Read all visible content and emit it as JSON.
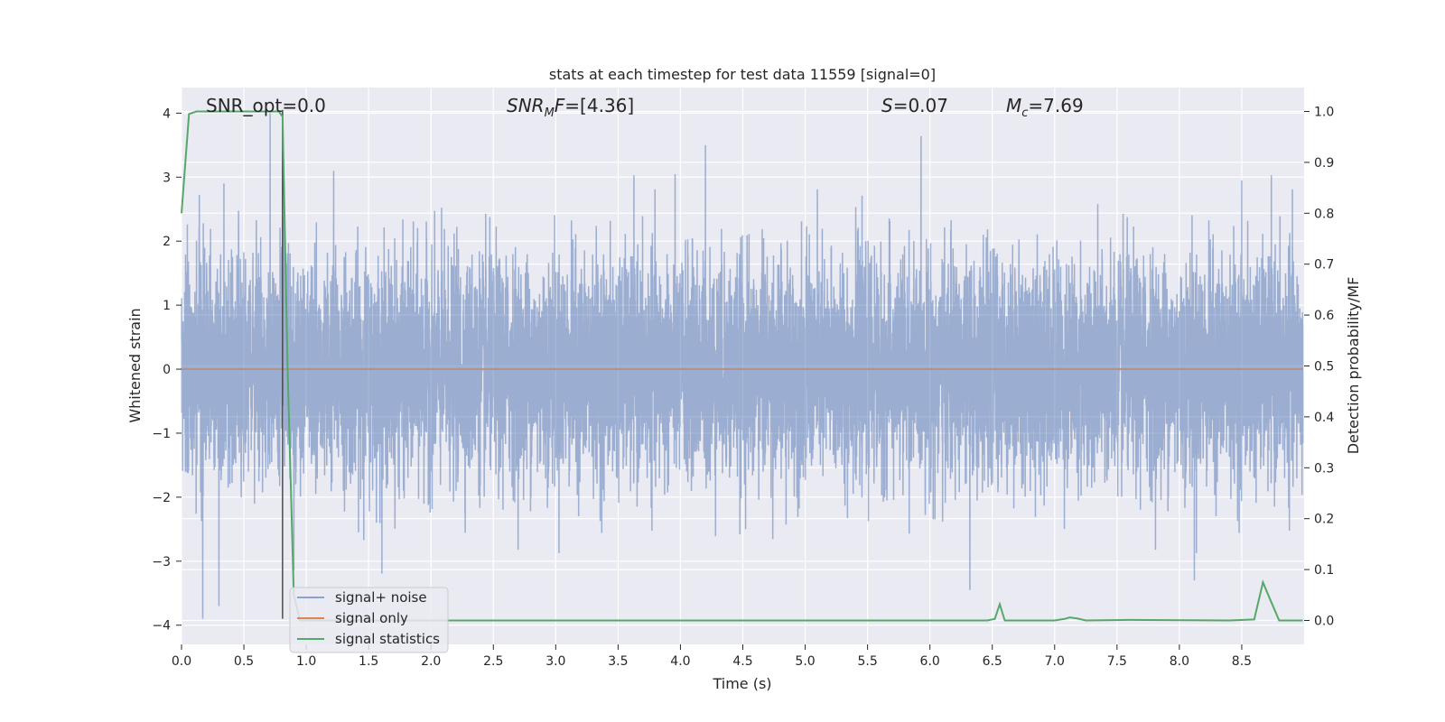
{
  "chart_data": {
    "type": "line",
    "title": "stats at each timestep for test data 11559 [signal=0]",
    "xlabel": "Time (s)",
    "ylabel_left": "Whitened strain",
    "ylabel_right": "Detection probability/MF",
    "xlim": [
      0.0,
      9.0
    ],
    "ylim_left": [
      -4.3,
      4.4
    ],
    "ylim_right": [
      -0.047,
      1.047
    ],
    "x_ticks": [
      0.0,
      0.5,
      1.0,
      1.5,
      2.0,
      2.5,
      3.0,
      3.5,
      4.0,
      4.5,
      5.0,
      5.5,
      6.0,
      6.5,
      7.0,
      7.5,
      8.0,
      8.5
    ],
    "x_tick_labels": [
      "0.0",
      "0.5",
      "1.0",
      "1.5",
      "2.0",
      "2.5",
      "3.0",
      "3.5",
      "4.0",
      "4.5",
      "5.0",
      "5.5",
      "6.0",
      "6.5",
      "7.0",
      "7.5",
      "8.0",
      "8.5"
    ],
    "y_left_ticks": [
      4,
      3,
      2,
      1,
      0,
      -1,
      -2,
      -3,
      -4
    ],
    "y_left_tick_labels": [
      "4",
      "3",
      "2",
      "1",
      "0",
      "−1",
      "−2",
      "−3",
      "−4"
    ],
    "y_right_ticks": [
      1.0,
      0.9,
      0.8,
      0.7,
      0.6,
      0.5,
      0.4,
      0.3,
      0.2,
      0.1,
      0.0
    ],
    "y_right_tick_labels": [
      "1.0",
      "0.9",
      "0.8",
      "0.7",
      "0.6",
      "0.5",
      "0.4",
      "0.3",
      "0.2",
      "0.1",
      "0.0"
    ],
    "grid": true,
    "annotations": [
      {
        "key": "snr_opt",
        "text": "SNR_opt=0.0",
        "x": 0.2
      },
      {
        "key": "snr_mf",
        "text": "SNR_MF=[4.36]",
        "x": 2.6
      },
      {
        "key": "s_value",
        "text": "S=0.07",
        "x": 5.6
      },
      {
        "key": "mc_value",
        "text": "M_c=7.69",
        "x": 6.6
      }
    ],
    "marker_line": {
      "x": 0.81,
      "y_from": -3.9,
      "y_to": 4.05
    },
    "series": [
      {
        "name": "signal+ noise",
        "axis": "left",
        "color": "#4c72b0",
        "opacity": 0.5,
        "kind": "noise",
        "sample_rate": 1024,
        "std": 0.85,
        "notable_peaks": [
          [
            0.17,
            -3.9
          ],
          [
            0.3,
            -3.7
          ],
          [
            0.34,
            2.9
          ],
          [
            0.71,
            4.0
          ],
          [
            0.81,
            4.05
          ],
          [
            0.9,
            -3.15
          ],
          [
            1.22,
            3.1
          ],
          [
            4.2,
            3.5
          ],
          [
            6.32,
            -3.45
          ],
          [
            8.12,
            -3.3
          ],
          [
            8.5,
            2.95
          ]
        ]
      },
      {
        "name": "signal only",
        "axis": "left",
        "color": "#dd8452",
        "kind": "constant",
        "value": 0.0
      },
      {
        "name": "signal statistics",
        "axis": "right",
        "color": "#55a868",
        "kind": "line",
        "x": [
          0.0,
          0.06,
          0.12,
          0.3,
          0.6,
          0.78,
          0.81,
          0.85,
          0.9,
          0.95,
          6.46,
          6.52,
          6.56,
          6.6,
          7.0,
          7.08,
          7.12,
          7.18,
          7.25,
          7.6,
          8.4,
          8.6,
          8.67,
          8.73,
          8.8,
          8.9,
          8.99
        ],
        "y": [
          0.8,
          0.995,
          1.0,
          1.0,
          1.0,
          1.0,
          0.99,
          0.5,
          0.05,
          0.0,
          0.0,
          0.003,
          0.032,
          0.0,
          0.0,
          0.003,
          0.006,
          0.004,
          0.0,
          0.001,
          0.0,
          0.002,
          0.075,
          0.04,
          0.0,
          0.0,
          0.0
        ]
      }
    ],
    "legend": {
      "location": "lower-left",
      "entries": [
        "signal+ noise",
        "signal only",
        "signal statistics"
      ]
    }
  }
}
